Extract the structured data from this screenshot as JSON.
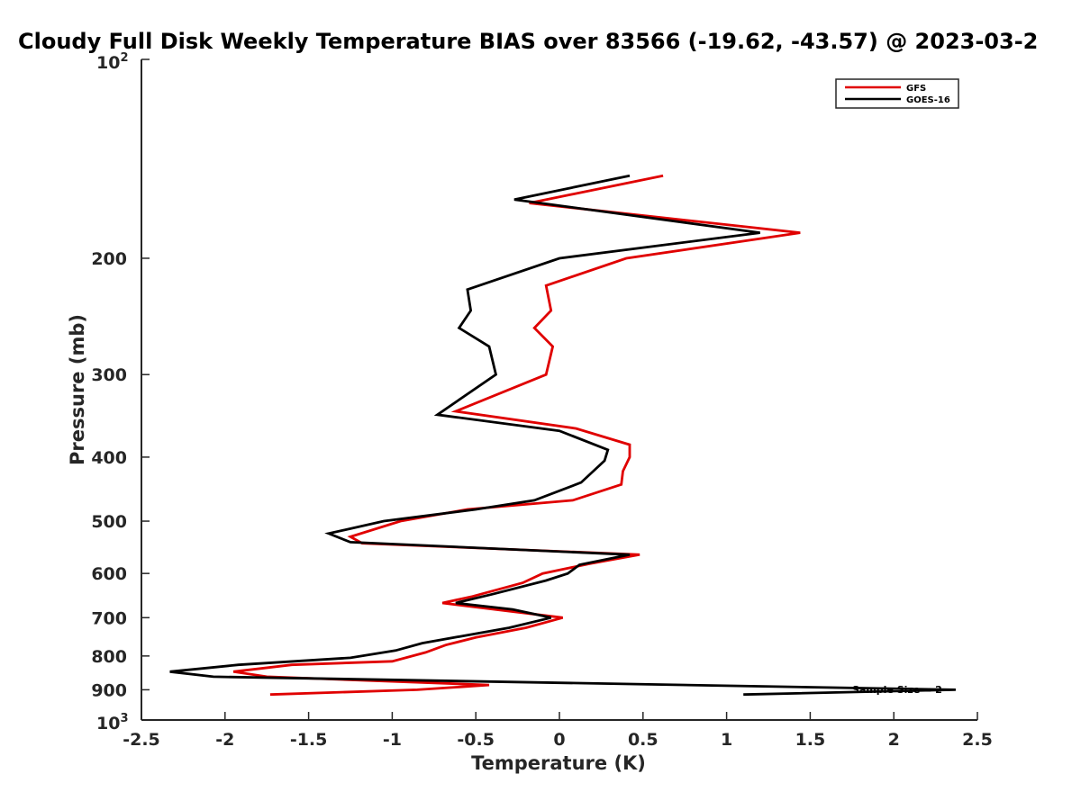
{
  "chart_data": {
    "type": "line",
    "title": "Cloudy Full Disk Weekly Temperature BIAS over 83566 (-19.62, -43.57) @ 2023-03-2",
    "xlabel": "Temperature (K)",
    "ylabel": "Pressure (mb)",
    "xlim": [
      -2.5,
      2.5
    ],
    "ylim": [
      100,
      1000
    ],
    "y_scale": "log",
    "y_direction": "reversed",
    "x_ticks": [
      -2.5,
      -2,
      -1.5,
      -1,
      -0.5,
      0,
      0.5,
      1,
      1.5,
      2,
      2.5
    ],
    "x_tick_labels": [
      "-2.5",
      "-2",
      "-1.5",
      "-1",
      "-0.5",
      "0",
      "0.5",
      "1",
      "1.5",
      "2",
      "2.5"
    ],
    "y_ticks": [
      200,
      300,
      400,
      500,
      600,
      700,
      800,
      900
    ],
    "y_tick_labels": [
      "200",
      "300",
      "400",
      "500",
      "600",
      "700",
      "800",
      "900"
    ],
    "y_top_label": {
      "base": "10",
      "exp": "2"
    },
    "y_bottom_label": {
      "base": "10",
      "exp": "3"
    },
    "grid": false,
    "legend_position": "top-right",
    "annotation": "Sample Size = 2",
    "series": [
      {
        "name": "GFS",
        "color": "#e00000",
        "points": [
          [
            0.62,
            150
          ],
          [
            -0.18,
            165
          ],
          [
            1.44,
            183
          ],
          [
            0.4,
            200
          ],
          [
            -0.08,
            220
          ],
          [
            -0.05,
            240
          ],
          [
            -0.15,
            255
          ],
          [
            -0.04,
            272
          ],
          [
            -0.08,
            300
          ],
          [
            -0.62,
            341
          ],
          [
            0.1,
            362
          ],
          [
            0.42,
            383
          ],
          [
            0.42,
            400
          ],
          [
            0.38,
            420
          ],
          [
            0.37,
            440
          ],
          [
            0.08,
            465
          ],
          [
            -0.55,
            480
          ],
          [
            -0.95,
            500
          ],
          [
            -1.25,
            528
          ],
          [
            -1.18,
            540
          ],
          [
            0.48,
            562
          ],
          [
            0.18,
            580
          ],
          [
            -0.1,
            600
          ],
          [
            -0.22,
            620
          ],
          [
            -0.52,
            650
          ],
          [
            -0.7,
            665
          ],
          [
            0.02,
            700
          ],
          [
            -0.2,
            725
          ],
          [
            -0.5,
            750
          ],
          [
            -0.68,
            770
          ],
          [
            -0.8,
            790
          ],
          [
            -1.0,
            815
          ],
          [
            -1.6,
            825
          ],
          [
            -1.95,
            845
          ],
          [
            -1.75,
            860
          ],
          [
            -0.42,
            885
          ],
          [
            -0.85,
            900
          ],
          [
            -1.73,
            915
          ]
        ]
      },
      {
        "name": "GOES-16",
        "color": "#000000",
        "points": [
          [
            0.42,
            150
          ],
          [
            -0.27,
            163
          ],
          [
            1.2,
            183
          ],
          [
            0.0,
            200
          ],
          [
            -0.55,
            223
          ],
          [
            -0.53,
            240
          ],
          [
            -0.6,
            255
          ],
          [
            -0.42,
            272
          ],
          [
            -0.38,
            300
          ],
          [
            -0.73,
            345
          ],
          [
            0.0,
            365
          ],
          [
            0.29,
            390
          ],
          [
            0.27,
            405
          ],
          [
            0.13,
            437
          ],
          [
            -0.15,
            465
          ],
          [
            -0.5,
            480
          ],
          [
            -1.05,
            500
          ],
          [
            -1.38,
            522
          ],
          [
            -1.25,
            538
          ],
          [
            0.42,
            562
          ],
          [
            0.12,
            582
          ],
          [
            0.05,
            600
          ],
          [
            -0.08,
            615
          ],
          [
            -0.4,
            645
          ],
          [
            -0.62,
            665
          ],
          [
            -0.28,
            680
          ],
          [
            -0.05,
            700
          ],
          [
            -0.3,
            725
          ],
          [
            -0.82,
            765
          ],
          [
            -0.98,
            785
          ],
          [
            -1.25,
            805
          ],
          [
            -1.92,
            825
          ],
          [
            -2.33,
            845
          ],
          [
            -2.07,
            860
          ],
          [
            2.37,
            900
          ],
          [
            1.1,
            915
          ]
        ]
      }
    ]
  }
}
